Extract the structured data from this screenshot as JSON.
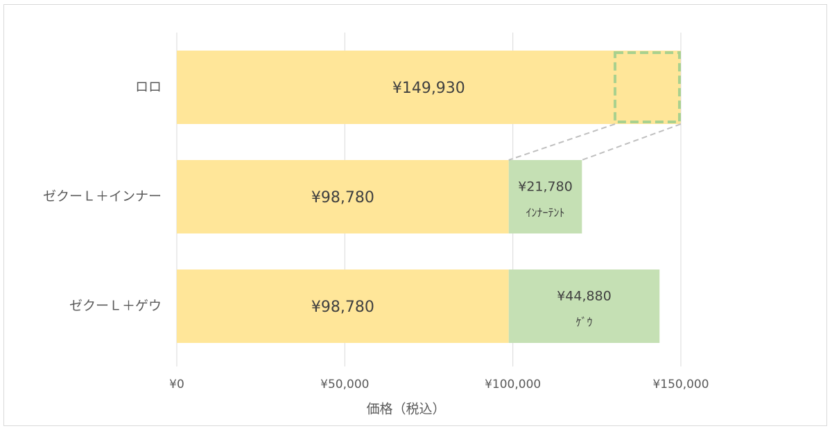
{
  "chart_data": {
    "type": "bar",
    "orientation": "horizontal",
    "stacked": true,
    "categories": [
      "ロロ",
      "ゼクーＬ＋インナー",
      "ゼクーＬ＋ゲウ"
    ],
    "series": [
      {
        "values": [
          149930,
          98780,
          98780
        ],
        "color": "#ffe699"
      },
      {
        "values": [
          0,
          21780,
          44880
        ],
        "color": "#c5e0b4"
      }
    ],
    "value_labels": [
      [
        "¥149,930",
        "¥98,780",
        "¥98,780"
      ],
      [
        "",
        "¥21,780",
        "¥44,880"
      ]
    ],
    "segment_notes": [
      "",
      "ｲﾝﾅｰﾃﾝﾄ",
      "ｹﾞｳ"
    ],
    "xlim": [
      0,
      150000
    ],
    "xticks": [
      0,
      50000,
      100000,
      150000
    ],
    "xtick_labels": [
      "¥0",
      "¥50,000",
      "¥100,000",
      "¥150,000"
    ],
    "xlabel": "価格（税込）",
    "grid": "vertical",
    "highlight": {
      "category": "ロロ",
      "from": 130000,
      "to": 150000,
      "connects_to": "ゼクーＬ＋インナー",
      "color": "#a9d18e"
    }
  }
}
